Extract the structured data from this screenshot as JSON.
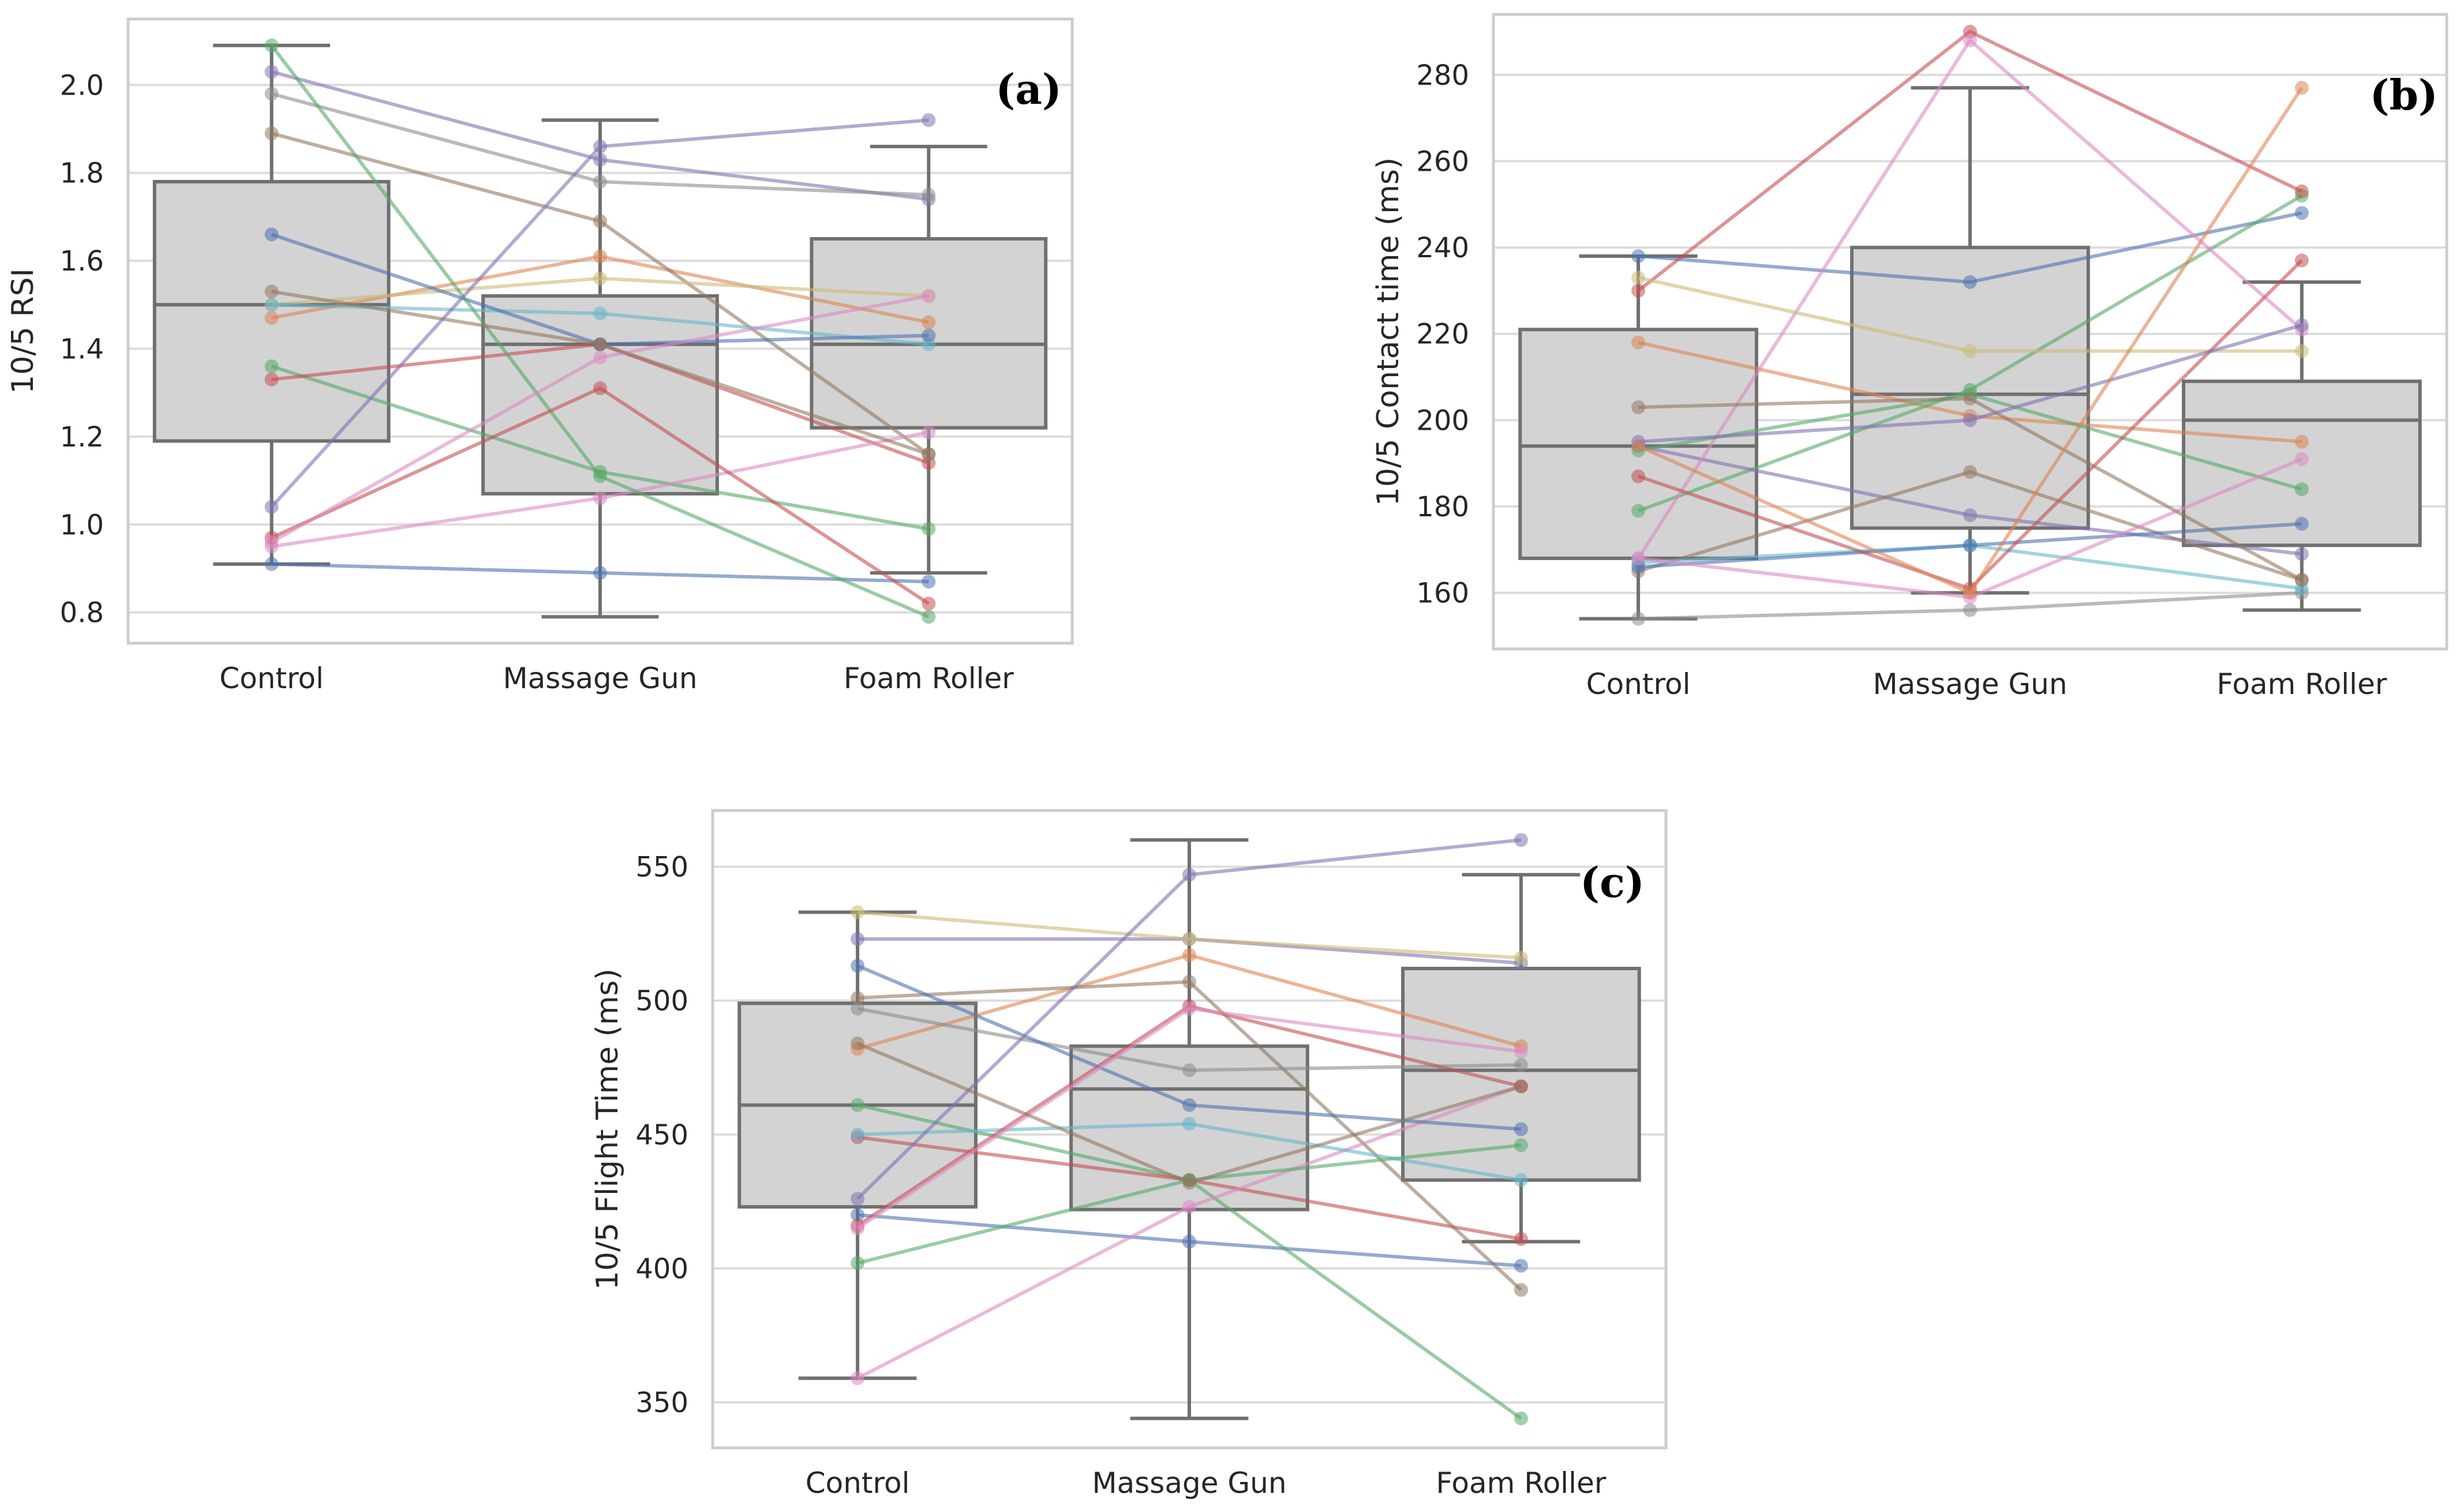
{
  "chart_data": [
    {
      "type": "box",
      "panel_label": "(a)",
      "ylabel": "10/5 RSI",
      "xlabel": "",
      "categories": [
        "Control",
        "Massage Gun",
        "Foam Roller"
      ],
      "ylim": [
        0.73,
        2.15
      ],
      "yticks": [
        0.8,
        1.0,
        1.2,
        1.4,
        1.6,
        1.8,
        2.0
      ],
      "ytick_labels": [
        "0.8",
        "1.0",
        "1.2",
        "1.4",
        "1.6",
        "1.8",
        "2.0"
      ],
      "grid": true,
      "boxes": [
        {
          "whisker_low": 0.91,
          "q1": 1.19,
          "median": 1.5,
          "q3": 1.78,
          "whisker_high": 2.09
        },
        {
          "whisker_low": 0.79,
          "q1": 1.07,
          "median": 1.41,
          "q3": 1.52,
          "whisker_high": 1.92
        },
        {
          "whisker_low": 0.89,
          "q1": 1.22,
          "median": 1.41,
          "q3": 1.65,
          "whisker_high": 1.86
        }
      ],
      "subjects": [
        {
          "color": "#4c72b0",
          "values": [
            0.91,
            0.89,
            0.87
          ]
        },
        {
          "color": "#dd8452",
          "values": [
            1.47,
            1.61,
            1.46
          ]
        },
        {
          "color": "#55a868",
          "values": [
            1.36,
            1.12,
            0.99
          ]
        },
        {
          "color": "#c44e52",
          "values": [
            1.33,
            1.41,
            1.14
          ]
        },
        {
          "color": "#8172b3",
          "values": [
            2.03,
            1.83,
            1.74
          ]
        },
        {
          "color": "#937860",
          "values": [
            1.89,
            1.69,
            1.16
          ]
        },
        {
          "color": "#da8bc3",
          "values": [
            0.95,
            1.06,
            1.21
          ]
        },
        {
          "color": "#8c8c8c",
          "values": [
            1.98,
            1.78,
            1.75
          ]
        },
        {
          "color": "#ccb974",
          "values": [
            1.5,
            1.56,
            1.52
          ]
        },
        {
          "color": "#64b5cd",
          "values": [
            1.5,
            1.48,
            1.41
          ]
        },
        {
          "color": "#4c72b0",
          "values": [
            1.66,
            1.41,
            1.43
          ]
        },
        {
          "color": "#55a868",
          "values": [
            2.09,
            1.11,
            0.79
          ]
        },
        {
          "color": "#c44e52",
          "values": [
            0.97,
            1.31,
            0.82
          ]
        },
        {
          "color": "#8172b3",
          "values": [
            1.04,
            1.86,
            1.92
          ]
        },
        {
          "color": "#da8bc3",
          "values": [
            0.96,
            1.38,
            1.52
          ]
        },
        {
          "color": "#937860",
          "values": [
            1.53,
            1.41,
            1.16
          ]
        }
      ]
    },
    {
      "type": "box",
      "panel_label": "(b)",
      "ylabel": "10/5 Contact time (ms)",
      "xlabel": "",
      "categories": [
        "Control",
        "Massage Gun",
        "Foam Roller"
      ],
      "ylim": [
        147,
        294
      ],
      "yticks": [
        160,
        180,
        200,
        220,
        240,
        260,
        280
      ],
      "ytick_labels": [
        "160",
        "180",
        "200",
        "220",
        "240",
        "260",
        "280"
      ],
      "grid": true,
      "boxes": [
        {
          "whisker_low": 154,
          "q1": 168,
          "median": 194,
          "q3": 221,
          "whisker_high": 238
        },
        {
          "whisker_low": 160,
          "q1": 175,
          "median": 206,
          "q3": 240,
          "whisker_high": 277
        },
        {
          "whisker_low": 156,
          "q1": 171,
          "median": 200,
          "q3": 209,
          "whisker_high": 232
        }
      ],
      "subjects": [
        {
          "color": "#4c72b0",
          "values": [
            238,
            232,
            248
          ]
        },
        {
          "color": "#dd8452",
          "values": [
            218,
            201,
            195
          ]
        },
        {
          "color": "#55a868",
          "values": [
            179,
            207,
            252
          ]
        },
        {
          "color": "#c44e52",
          "values": [
            230,
            290,
            253
          ]
        },
        {
          "color": "#8172b3",
          "values": [
            194,
            178,
            169
          ]
        },
        {
          "color": "#937860",
          "values": [
            165,
            188,
            163
          ]
        },
        {
          "color": "#da8bc3",
          "values": [
            168,
            288,
            221
          ]
        },
        {
          "color": "#8c8c8c",
          "values": [
            154,
            156,
            160
          ]
        },
        {
          "color": "#ccb974",
          "values": [
            233,
            216,
            216
          ]
        },
        {
          "color": "#64b5cd",
          "values": [
            167,
            171,
            161
          ]
        },
        {
          "color": "#4c72b0",
          "values": [
            166,
            171,
            176
          ]
        },
        {
          "color": "#55a868",
          "values": [
            193,
            206,
            184
          ]
        },
        {
          "color": "#c44e52",
          "values": [
            187,
            161,
            237
          ]
        },
        {
          "color": "#8172b3",
          "values": [
            195,
            200,
            222
          ]
        },
        {
          "color": "#da8bc3",
          "values": [
            168,
            159,
            191
          ]
        },
        {
          "color": "#937860",
          "values": [
            203,
            205,
            163
          ]
        },
        {
          "color": "#dd8452",
          "values": [
            194,
            160,
            277
          ]
        }
      ]
    },
    {
      "type": "box",
      "panel_label": "(c)",
      "ylabel": "10/5 Flight Time (ms)",
      "xlabel": "",
      "categories": [
        "Control",
        "Massage Gun",
        "Foam Roller"
      ],
      "ylim": [
        333,
        571
      ],
      "yticks": [
        350,
        400,
        450,
        500,
        550
      ],
      "ytick_labels": [
        "350",
        "400",
        "450",
        "500",
        "550"
      ],
      "grid": true,
      "boxes": [
        {
          "whisker_low": 359,
          "q1": 423,
          "median": 461,
          "q3": 499,
          "whisker_high": 533
        },
        {
          "whisker_low": 344,
          "q1": 422,
          "median": 467,
          "q3": 483,
          "whisker_high": 560
        },
        {
          "whisker_low": 410,
          "q1": 433,
          "median": 474,
          "q3": 512,
          "whisker_high": 547
        }
      ],
      "subjects": [
        {
          "color": "#4c72b0",
          "values": [
            420,
            410,
            401
          ]
        },
        {
          "color": "#dd8452",
          "values": [
            482,
            517,
            483
          ]
        },
        {
          "color": "#55a868",
          "values": [
            461,
            433,
            344
          ]
        },
        {
          "color": "#c44e52",
          "values": [
            449,
            433,
            411
          ]
        },
        {
          "color": "#8172b3",
          "values": [
            523,
            523,
            514
          ]
        },
        {
          "color": "#937860",
          "values": [
            501,
            507,
            392
          ]
        },
        {
          "color": "#da8bc3",
          "values": [
            359,
            423,
            468
          ]
        },
        {
          "color": "#8c8c8c",
          "values": [
            497,
            474,
            476
          ]
        },
        {
          "color": "#ccb974",
          "values": [
            533,
            523,
            516
          ]
        },
        {
          "color": "#64b5cd",
          "values": [
            450,
            454,
            433
          ]
        },
        {
          "color": "#4c72b0",
          "values": [
            513,
            461,
            452
          ]
        },
        {
          "color": "#55a868",
          "values": [
            402,
            433,
            446
          ]
        },
        {
          "color": "#c44e52",
          "values": [
            416,
            498,
            468
          ]
        },
        {
          "color": "#8172b3",
          "values": [
            426,
            547,
            560
          ]
        },
        {
          "color": "#da8bc3",
          "values": [
            415,
            497,
            481
          ]
        },
        {
          "color": "#937860",
          "values": [
            484,
            432,
            468
          ]
        }
      ]
    }
  ]
}
